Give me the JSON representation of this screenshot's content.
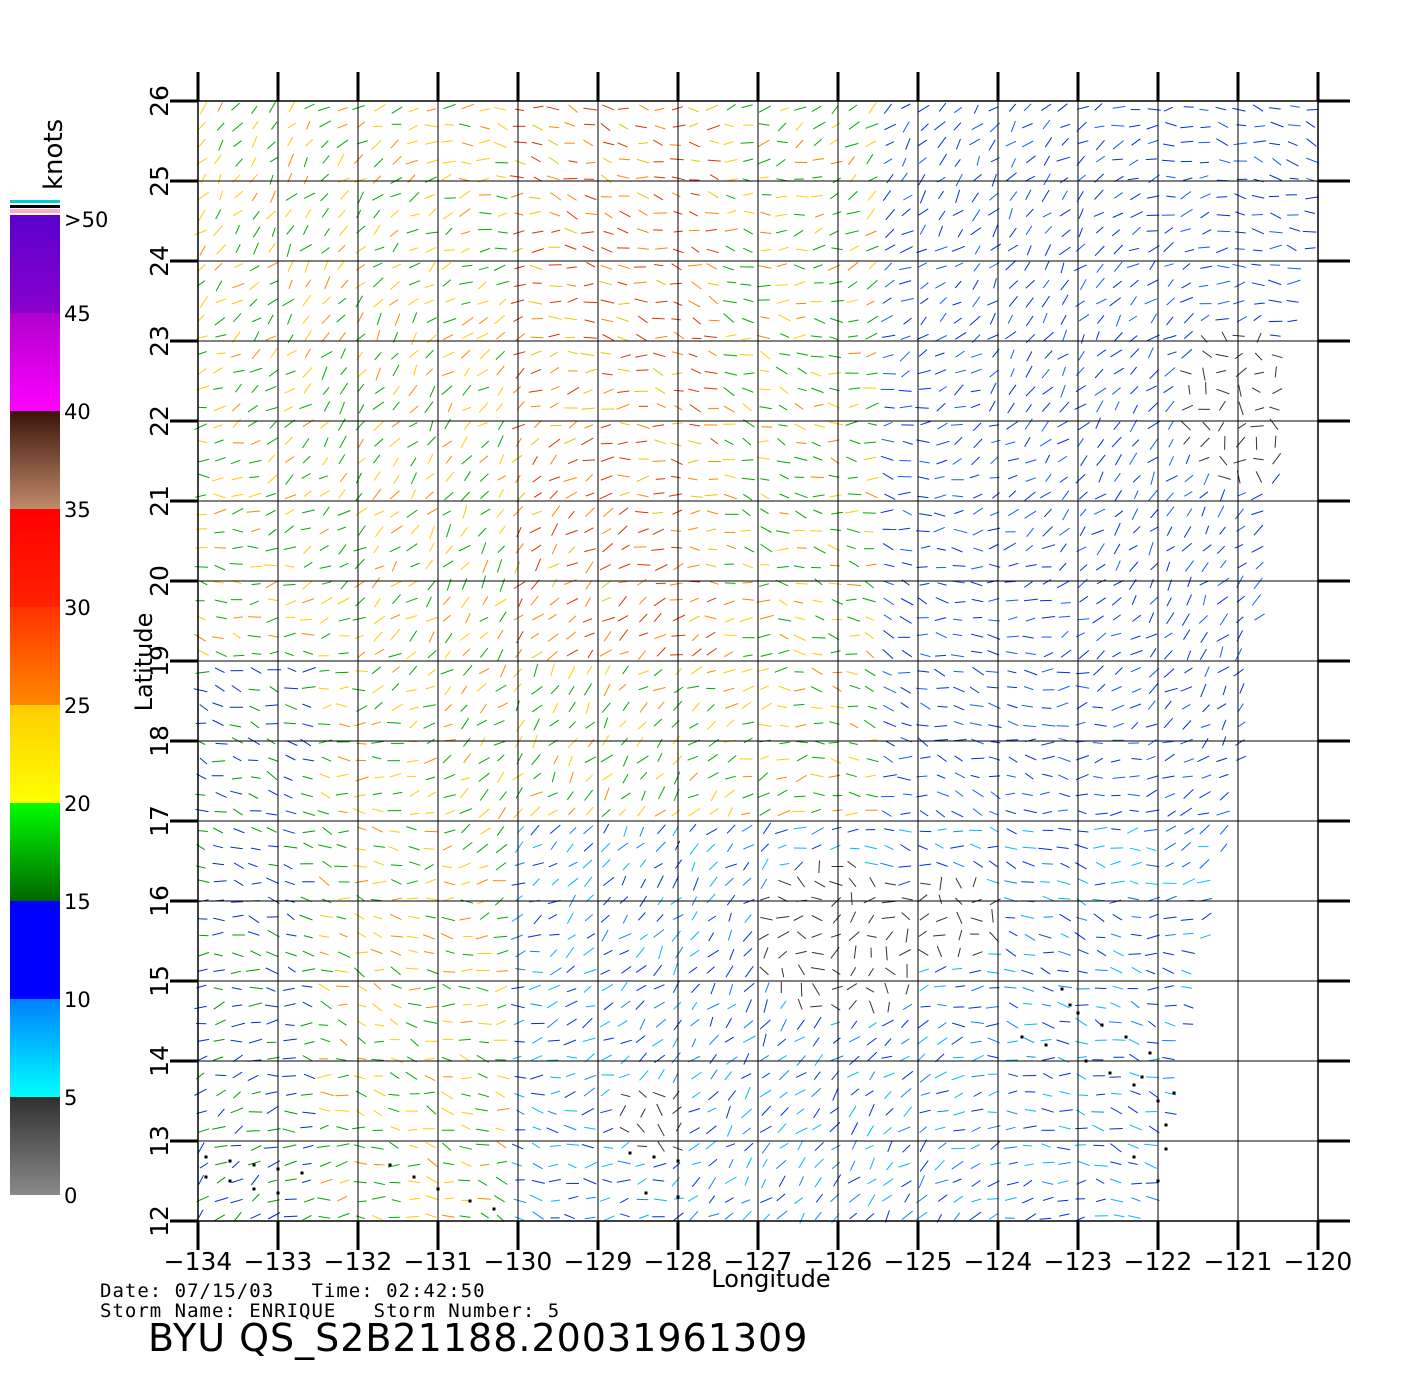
{
  "map": {
    "x_axis_label": "Longitude",
    "y_axis_label": "Latitude",
    "longitude_ticks": [
      "−134",
      "−133",
      "−132",
      "−131",
      "−130",
      "−129",
      "−128",
      "−127",
      "−126",
      "−125",
      "−124",
      "−123",
      "−122",
      "−121",
      "−120"
    ],
    "latitude_ticks": [
      "12",
      "13",
      "14",
      "15",
      "16",
      "17",
      "18",
      "19",
      "20",
      "21",
      "22",
      "23",
      "24",
      "25",
      "26"
    ],
    "lon_range": [
      -134,
      -120
    ],
    "lat_range": [
      12,
      26
    ],
    "grid": true,
    "layer": "wind vectors"
  },
  "legend": {
    "title": "knots",
    "tick_labels": [
      "0",
      "5",
      "10",
      "15",
      "20",
      "25",
      "30",
      "35",
      "40",
      "45",
      ">50"
    ],
    "colors": [
      "#8a8a8a",
      "#3a3a3a",
      "#00ffff",
      "#0088ff",
      "#0000ff",
      "#007700",
      "#00ff00",
      "#ffff00",
      "#ffcc00",
      "#ff7700",
      "#ff3300",
      "#ff0000",
      "#c08060",
      "#3a1a10",
      "#ff00ff",
      "#aa00cc",
      "#6600cc"
    ]
  },
  "info": {
    "date_line": "Date: 07/15/03   Time: 02:42:50",
    "storm_line": "Storm Name: ENRIQUE   Storm Number: 5",
    "file_id": "BYU QS_S2B21188.20031961309"
  }
}
